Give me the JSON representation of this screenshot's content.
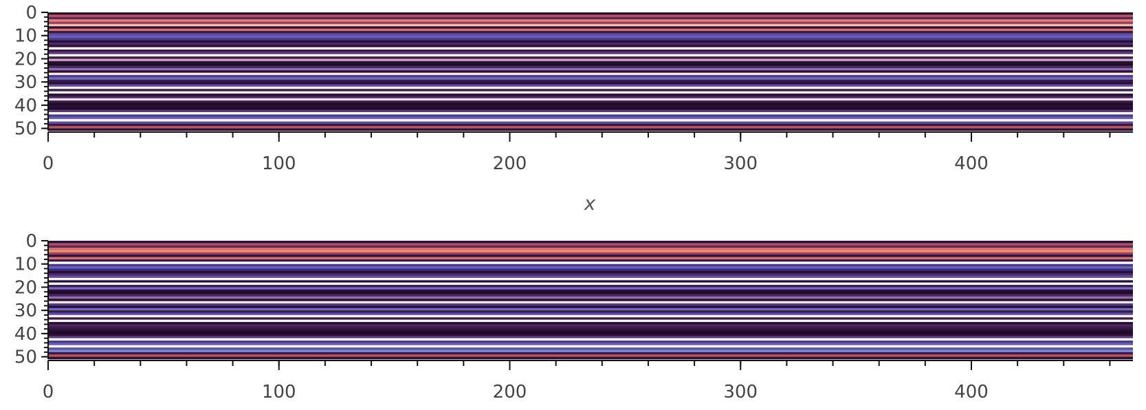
{
  "chart_data": [
    {
      "type": "heatmap",
      "title": "",
      "xlabel": "x",
      "ylabel": "",
      "xlim": [
        0,
        470
      ],
      "ylim": [
        0,
        51
      ],
      "y_inverted": true,
      "x_ticks": [
        0,
        100,
        200,
        300,
        400
      ],
      "x_tick_labels": [
        "0",
        "100",
        "200",
        "300",
        "400"
      ],
      "y_ticks": [
        0,
        10,
        20,
        30,
        40,
        50
      ],
      "y_tick_labels": [
        "0",
        "10",
        "20",
        "30",
        "40",
        "50"
      ],
      "rows": [
        {
          "row": 0,
          "color": "#2a1036"
        },
        {
          "row": 1,
          "color": "#c0565a"
        },
        {
          "row": 2,
          "color": "#5a2a5e"
        },
        {
          "row": 3,
          "color": "#e8836a"
        },
        {
          "row": 4,
          "color": "#9b3d6b"
        },
        {
          "row": 5,
          "color": "#f0c0a0"
        },
        {
          "row": 6,
          "color": "#2a1036"
        },
        {
          "row": 7,
          "color": "#d9726a"
        },
        {
          "row": 8,
          "color": "#3a1a4a"
        },
        {
          "row": 9,
          "color": "#5e4fa5"
        },
        {
          "row": 10,
          "color": "#6a5fb8"
        },
        {
          "row": 11,
          "color": "#4a3a8a"
        },
        {
          "row": 12,
          "color": "#2a1036"
        },
        {
          "row": 13,
          "color": "#4b2a6b"
        },
        {
          "row": 14,
          "color": "#2a1036"
        },
        {
          "row": 15,
          "color": "#fff8f0"
        },
        {
          "row": 16,
          "color": "#3a1a4a"
        },
        {
          "row": 17,
          "color": "#5e3a7a"
        },
        {
          "row": 18,
          "color": "#ffffff"
        },
        {
          "row": 19,
          "color": "#3a1a4a"
        },
        {
          "row": 20,
          "color": "#c9a6c4"
        },
        {
          "row": 21,
          "color": "#2a1036"
        },
        {
          "row": 22,
          "color": "#1e0c28"
        },
        {
          "row": 23,
          "color": "#4a2a5e"
        },
        {
          "row": 24,
          "color": "#8e6fb0"
        },
        {
          "row": 25,
          "color": "#2a1036"
        },
        {
          "row": 26,
          "color": "#f5e6e0"
        },
        {
          "row": 27,
          "color": "#4b3a8a"
        },
        {
          "row": 28,
          "color": "#6f6cc0"
        },
        {
          "row": 29,
          "color": "#3a1a4a"
        },
        {
          "row": 30,
          "color": "#2a1036"
        },
        {
          "row": 31,
          "color": "#5e4fa5"
        },
        {
          "row": 32,
          "color": "#fff4ea"
        },
        {
          "row": 33,
          "color": "#3a1a4a"
        },
        {
          "row": 34,
          "color": "#ffffff"
        },
        {
          "row": 35,
          "color": "#2a1036"
        },
        {
          "row": 36,
          "color": "#4a2a5e"
        },
        {
          "row": 37,
          "color": "#e6e0f0"
        },
        {
          "row": 38,
          "color": "#3a1a4a"
        },
        {
          "row": 39,
          "color": "#1e0c28"
        },
        {
          "row": 40,
          "color": "#2a1036"
        },
        {
          "row": 41,
          "color": "#1e0c28"
        },
        {
          "row": 42,
          "color": "#5e3a7a"
        },
        {
          "row": 43,
          "color": "#ffffff"
        },
        {
          "row": 44,
          "color": "#4a3a8a"
        },
        {
          "row": 45,
          "color": "#6a5fb8"
        },
        {
          "row": 46,
          "color": "#ffffff"
        },
        {
          "row": 47,
          "color": "#5e4fa5"
        },
        {
          "row": 48,
          "color": "#3a1a4a"
        },
        {
          "row": 49,
          "color": "#c0565a"
        },
        {
          "row": 50,
          "color": "#2a1036"
        }
      ]
    },
    {
      "type": "heatmap",
      "title": "",
      "xlabel": "",
      "ylabel": "",
      "xlim": [
        0,
        470
      ],
      "ylim": [
        0,
        51
      ],
      "y_inverted": true,
      "x_ticks": [
        0,
        100,
        200,
        300,
        400
      ],
      "x_tick_labels": [
        "0",
        "100",
        "200",
        "300",
        "400"
      ],
      "y_ticks": [
        0,
        10,
        20,
        30,
        40,
        50
      ],
      "y_tick_labels": [
        "0",
        "10",
        "20",
        "30",
        "40",
        "50"
      ],
      "rows": [
        {
          "row": 0,
          "color": "#2a1036"
        },
        {
          "row": 1,
          "color": "#b04e62"
        },
        {
          "row": 2,
          "color": "#5a2a5e"
        },
        {
          "row": 3,
          "color": "#d86f6a"
        },
        {
          "row": 4,
          "color": "#e8906a"
        },
        {
          "row": 5,
          "color": "#9b3d6b"
        },
        {
          "row": 6,
          "color": "#2a1036"
        },
        {
          "row": 7,
          "color": "#d9726a"
        },
        {
          "row": 8,
          "color": "#3a1a4a"
        },
        {
          "row": 9,
          "color": "#ffffff"
        },
        {
          "row": 10,
          "color": "#4a3a8a"
        },
        {
          "row": 11,
          "color": "#6a5fb8"
        },
        {
          "row": 12,
          "color": "#3a2a7a"
        },
        {
          "row": 13,
          "color": "#2a1036"
        },
        {
          "row": 14,
          "color": "#4b2a6b"
        },
        {
          "row": 15,
          "color": "#5e4fa5"
        },
        {
          "row": 16,
          "color": "#fff8f0"
        },
        {
          "row": 17,
          "color": "#2a1036"
        },
        {
          "row": 18,
          "color": "#ffffff"
        },
        {
          "row": 19,
          "color": "#3a1a4a"
        },
        {
          "row": 20,
          "color": "#6f6cc0"
        },
        {
          "row": 21,
          "color": "#2a1036"
        },
        {
          "row": 22,
          "color": "#1e0c28"
        },
        {
          "row": 23,
          "color": "#4a2a5e"
        },
        {
          "row": 24,
          "color": "#8e6fb0"
        },
        {
          "row": 25,
          "color": "#2a1036"
        },
        {
          "row": 26,
          "color": "#f5e6e0"
        },
        {
          "row": 27,
          "color": "#4b3a8a"
        },
        {
          "row": 28,
          "color": "#2a1036"
        },
        {
          "row": 29,
          "color": "#6f6cc0"
        },
        {
          "row": 30,
          "color": "#3a1a4a"
        },
        {
          "row": 31,
          "color": "#5e4fa5"
        },
        {
          "row": 32,
          "color": "#fff4ea"
        },
        {
          "row": 33,
          "color": "#3a1a4a"
        },
        {
          "row": 34,
          "color": "#ffffff"
        },
        {
          "row": 35,
          "color": "#2a1036"
        },
        {
          "row": 36,
          "color": "#4a2a5e"
        },
        {
          "row": 37,
          "color": "#3a1a4a"
        },
        {
          "row": 38,
          "color": "#2a1036"
        },
        {
          "row": 39,
          "color": "#1e0c28"
        },
        {
          "row": 40,
          "color": "#2a1036"
        },
        {
          "row": 41,
          "color": "#5e3a7a"
        },
        {
          "row": 42,
          "color": "#ffffff"
        },
        {
          "row": 43,
          "color": "#4a3a8a"
        },
        {
          "row": 44,
          "color": "#6a5fb8"
        },
        {
          "row": 45,
          "color": "#ffffff"
        },
        {
          "row": 46,
          "color": "#5e4fa5"
        },
        {
          "row": 47,
          "color": "#7a8ad0"
        },
        {
          "row": 48,
          "color": "#3a1a4a"
        },
        {
          "row": 49,
          "color": "#c0565a"
        },
        {
          "row": 50,
          "color": "#2a1036"
        }
      ]
    }
  ]
}
